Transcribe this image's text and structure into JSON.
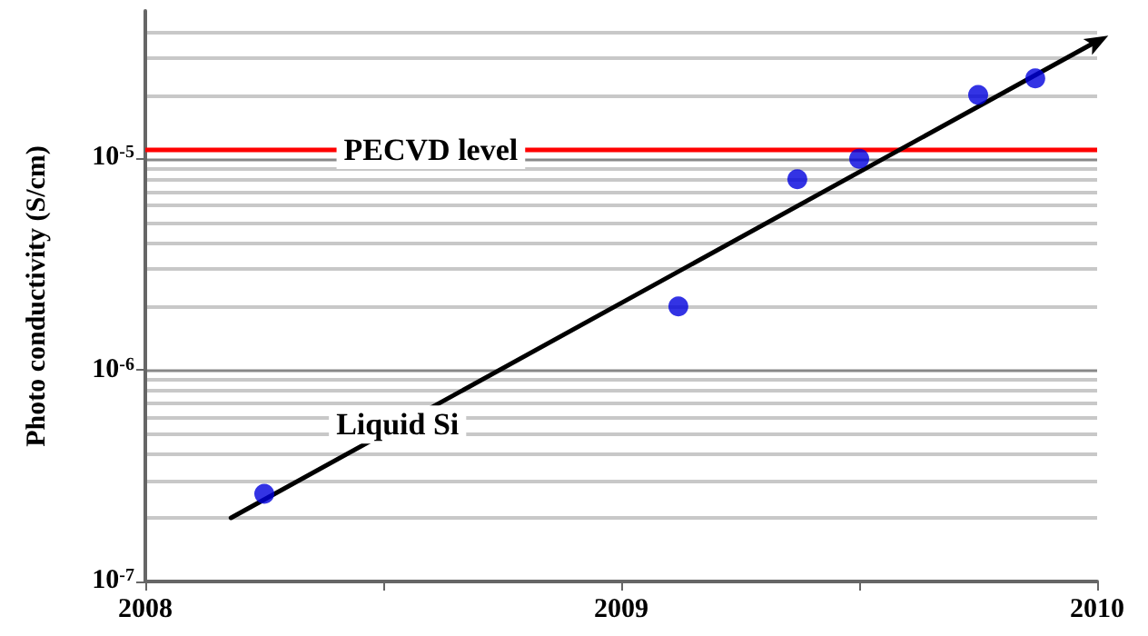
{
  "chart_data": {
    "type": "scatter",
    "ylabel": "Photo conductivity (S/cm)",
    "x": [
      2008.25,
      2009.12,
      2009.37,
      2009.5,
      2009.75,
      2009.87
    ],
    "series": [
      {
        "marker": "circle",
        "color": "#0000dd",
        "values": [
          2.6e-07,
          2e-06,
          8e-06,
          1e-05,
          2e-05,
          2.4e-05
        ]
      },
      {
        "type": "line",
        "color": "#000000",
        "x": [
          2008.18,
          2010
        ],
        "values": [
          2e-07,
          3.6e-05
        ]
      }
    ],
    "xlim": [
      2008,
      2010
    ],
    "xticks": [
      2008,
      {
        "value": 2008.5,
        "label": null
      },
      2009,
      {
        "value": 2009.5,
        "label": null
      },
      2010
    ],
    "ylim": [
      1e-07,
      5e-05
    ],
    "yticks": [
      {
        "value": 1e-07,
        "label": "10$^{-7}$"
      },
      {
        "value": 1e-06,
        "label": "10$^{-6}$"
      },
      {
        "value": 1e-05,
        "label": "10$^{-5}$"
      }
    ],
    "log": "y",
    "grid": "y",
    "ref_lines": [
      {
        "axis": "y",
        "value": 1.1e-05,
        "label": "PECVD level",
        "color": "#ff0000"
      }
    ],
    "annotations": [
      "Liquid Si"
    ]
  }
}
